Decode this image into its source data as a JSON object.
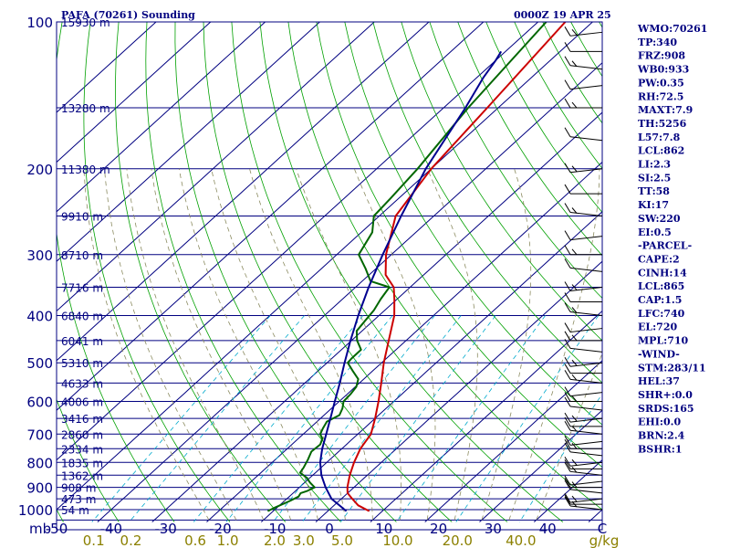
{
  "header": {
    "station": "PAFA (70261) Sounding",
    "time": "0000Z 19 APR 25"
  },
  "indices": [
    "WMO:70261",
    "TP:340",
    "FRZ:908",
    "WB0:933",
    "PW:0.35",
    "RH:72.5",
    "MAXT:7.9",
    "TH:5256",
    "L57:7.8",
    "LCL:862",
    "LI:2.3",
    "SI:2.5",
    "TT:58",
    "KI:17",
    "SW:220",
    "EI:0.5",
    "-PARCEL-",
    "CAPE:2",
    "CINH:14",
    "LCL:865",
    "CAP:1.5",
    "LFC:740",
    "EL:720",
    "MPL:710",
    "-WIND-",
    "STM:283/11",
    "HEL:37",
    "SHR+:0.0",
    "SRDS:165",
    "EHI:0.0",
    "BRN:2.4",
    "BSHR:1"
  ],
  "colors": {
    "isobar": "#000080",
    "isotherm": "#000080",
    "dry_adiabat": "#00a000",
    "moist_adiabat": "#8b8b60",
    "mixing_ratio": "#00aacc",
    "temperature": "#cc0000",
    "dewpoint": "#006600",
    "wetbulb": "#000090",
    "wind_barb": "#000000"
  },
  "chart_data": {
    "type": "line",
    "pressure_label": "mb",
    "wind_unit": "C",
    "mixing_ratio_unit": "g/kg",
    "pressure_ticks": [
      100,
      200,
      300,
      400,
      500,
      600,
      700,
      800,
      900,
      1000
    ],
    "temperature_ticks": [
      -50,
      -40,
      -30,
      -20,
      -10,
      0,
      10,
      20,
      30,
      40
    ],
    "temperature_range": [
      -50,
      50
    ],
    "pressure_range": [
      1000,
      100
    ],
    "pressure_axis": "log",
    "mixing_ratio_labels": [
      "0.1",
      "0.2",
      "0.6",
      "1.0",
      "2.0",
      "3.0",
      "5.0",
      "10.0",
      "20.0",
      "40.0"
    ],
    "mixing_ratio_values": [
      0.1,
      0.2,
      0.6,
      1.0,
      2.0,
      3.0,
      5.0,
      10.0,
      20.0,
      40.0
    ],
    "height_labels": [
      {
        "p": 100,
        "label": "15930 m"
      },
      {
        "p": 150,
        "label": "13280 m"
      },
      {
        "p": 200,
        "label": "11380 m"
      },
      {
        "p": 250,
        "label": "9910 m"
      },
      {
        "p": 300,
        "label": "8710 m"
      },
      {
        "p": 350,
        "label": "7716 m"
      },
      {
        "p": 400,
        "label": "6840 m"
      },
      {
        "p": 450,
        "label": "6041 m"
      },
      {
        "p": 500,
        "label": "5310 m"
      },
      {
        "p": 550,
        "label": "4633 m"
      },
      {
        "p": 600,
        "label": "4006 m"
      },
      {
        "p": 650,
        "label": "3416 m"
      },
      {
        "p": 700,
        "label": "2860 m"
      },
      {
        "p": 750,
        "label": "2334 m"
      },
      {
        "p": 800,
        "label": "1835 m"
      },
      {
        "p": 850,
        "label": "1362 m"
      },
      {
        "p": 900,
        "label": "908 m"
      },
      {
        "p": 950,
        "label": "473 m"
      },
      {
        "p": 1000,
        "label": "54 m"
      }
    ],
    "series": [
      {
        "key": "temperature",
        "points": [
          [
            1007,
            7.6
          ],
          [
            980,
            4.4
          ],
          [
            950,
            2.0
          ],
          [
            925,
            0.0
          ],
          [
            900,
            -1.2
          ],
          [
            850,
            -3.2
          ],
          [
            800,
            -5.0
          ],
          [
            750,
            -6.6
          ],
          [
            700,
            -7.6
          ],
          [
            650,
            -10.0
          ],
          [
            600,
            -12.8
          ],
          [
            550,
            -16.0
          ],
          [
            500,
            -19.6
          ],
          [
            450,
            -23.2
          ],
          [
            400,
            -27.2
          ],
          [
            370,
            -30.5
          ],
          [
            350,
            -33.0
          ],
          [
            330,
            -37.0
          ],
          [
            300,
            -41.0
          ],
          [
            250,
            -47.0
          ],
          [
            200,
            -50.0
          ],
          [
            150,
            -52.0
          ],
          [
            100,
            -55.0
          ]
        ]
      },
      {
        "key": "dewpoint",
        "points": [
          [
            1007,
            -11.0
          ],
          [
            990,
            -10.4
          ],
          [
            960,
            -9.0
          ],
          [
            940,
            -8.3
          ],
          [
            925,
            -8.6
          ],
          [
            915,
            -7.8
          ],
          [
            900,
            -7.2
          ],
          [
            880,
            -9.0
          ],
          [
            860,
            -10.6
          ],
          [
            840,
            -12.8
          ],
          [
            820,
            -13.2
          ],
          [
            790,
            -14.0
          ],
          [
            760,
            -15.0
          ],
          [
            735,
            -14.8
          ],
          [
            715,
            -15.6
          ],
          [
            700,
            -16.9
          ],
          [
            680,
            -17.6
          ],
          [
            660,
            -18.2
          ],
          [
            640,
            -17.2
          ],
          [
            620,
            -18.0
          ],
          [
            600,
            -19.2
          ],
          [
            580,
            -19.4
          ],
          [
            560,
            -19.8
          ],
          [
            540,
            -21.0
          ],
          [
            520,
            -23.6
          ],
          [
            500,
            -26.2
          ],
          [
            490,
            -26.4
          ],
          [
            470,
            -26.4
          ],
          [
            450,
            -29.0
          ],
          [
            430,
            -31.0
          ],
          [
            410,
            -31.5
          ],
          [
            390,
            -32.0
          ],
          [
            370,
            -33.0
          ],
          [
            350,
            -33.8
          ],
          [
            340,
            -38.5
          ],
          [
            320,
            -42.0
          ],
          [
            300,
            -46.0
          ],
          [
            270,
            -48.0
          ],
          [
            250,
            -51.0
          ],
          [
            230,
            -51.5
          ],
          [
            200,
            -52.5
          ],
          [
            150,
            -55.5
          ],
          [
            100,
            -58.5
          ]
        ]
      },
      {
        "key": "wetbulb",
        "points": [
          [
            1007,
            3.4
          ],
          [
            950,
            -1.8
          ],
          [
            900,
            -5.2
          ],
          [
            850,
            -8.4
          ],
          [
            800,
            -11.2
          ],
          [
            750,
            -13.6
          ],
          [
            700,
            -15.8
          ],
          [
            650,
            -18.2
          ],
          [
            600,
            -20.8
          ],
          [
            550,
            -23.6
          ],
          [
            500,
            -26.8
          ],
          [
            450,
            -30.2
          ],
          [
            400,
            -33.8
          ],
          [
            350,
            -37.6
          ],
          [
            300,
            -41.6
          ],
          [
            250,
            -46.0
          ],
          [
            200,
            -51.0
          ],
          [
            150,
            -56.0
          ],
          [
            130,
            -58.8
          ],
          [
            120,
            -60.0
          ],
          [
            115,
            -60.8
          ]
        ]
      }
    ],
    "wind_barb_pressures": [
      1000,
      975,
      950,
      925,
      900,
      875,
      850,
      825,
      800,
      775,
      750,
      725,
      700,
      675,
      650,
      625,
      600,
      575,
      550,
      525,
      500,
      475,
      450,
      425,
      400,
      375,
      350,
      325,
      300,
      275,
      250,
      225,
      200,
      175,
      150,
      135,
      125,
      115,
      105
    ]
  }
}
